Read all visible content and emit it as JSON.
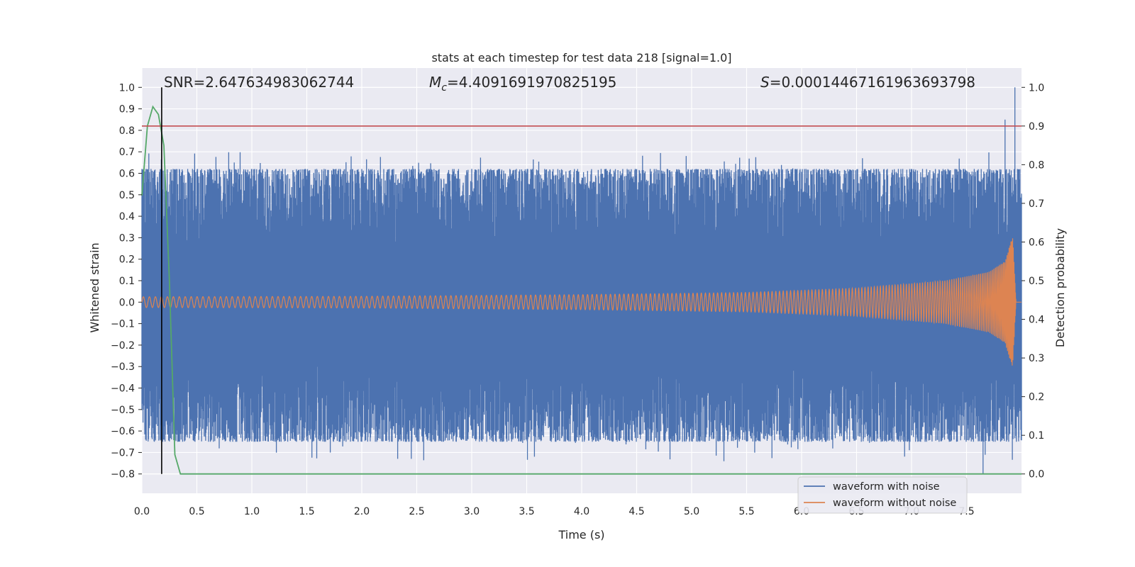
{
  "chart_data": {
    "type": "line",
    "title": "stats at each timestep for test data 218 [signal=1.0]",
    "xlabel": "Time (s)",
    "ylabel": "Whitened strain",
    "y2label": "Detection probability",
    "xlim": [
      0.0,
      8.0
    ],
    "ylim": [
      -0.89,
      1.09
    ],
    "y2lim": [
      -0.05,
      1.05
    ],
    "xticks": [
      0.0,
      0.5,
      1.0,
      1.5,
      2.0,
      2.5,
      3.0,
      3.5,
      4.0,
      4.5,
      5.0,
      5.5,
      6.0,
      6.5,
      7.0,
      7.5
    ],
    "xtick_labels": [
      "0.0",
      "0.5",
      "1.0",
      "1.5",
      "2.0",
      "2.5",
      "3.0",
      "3.5",
      "4.0",
      "4.5",
      "5.0",
      "5.5",
      "6.0",
      "6.5",
      "7.0",
      "7.5"
    ],
    "yticks": [
      1.0,
      0.9,
      0.8,
      0.7,
      0.6,
      0.5,
      0.4,
      0.3,
      0.2,
      0.1,
      0.0,
      -0.1,
      -0.2,
      -0.3,
      -0.4,
      -0.5,
      -0.6,
      -0.7,
      -0.8
    ],
    "ytick_labels": [
      "1.0",
      "0.9",
      "0.8",
      "0.7",
      "0.6",
      "0.5",
      "0.4",
      "0.3",
      "0.2",
      "0.1",
      "0.0",
      "−0.1",
      "−0.2",
      "−0.3",
      "−0.4",
      "−0.5",
      "−0.6",
      "−0.7",
      "−0.8"
    ],
    "y2ticks": [
      1.0,
      0.9,
      0.8,
      0.7,
      0.6,
      0.5,
      0.4,
      0.3,
      0.2,
      0.1,
      0.0
    ],
    "y2tick_labels": [
      "1.0",
      "0.9",
      "0.8",
      "0.7",
      "0.6",
      "0.5",
      "0.4",
      "0.3",
      "0.2",
      "0.1",
      "0.0"
    ],
    "annotations": {
      "snr": "SNR=2.647634983062744",
      "mc_symbol": "M",
      "mc_sub": "c",
      "mc_value": "=4.4091691970825195",
      "s_symbol": "S",
      "s_value": "=0.00014467161963693798"
    },
    "series": [
      {
        "name": "waveform with noise",
        "color": "#4c72b0",
        "axis": "left",
        "x_range": [
          0.0,
          8.0
        ],
        "envelope_typical": [
          -0.65,
          0.62
        ],
        "extremes": {
          "max": 1.0,
          "min": -0.8
        }
      },
      {
        "name": "waveform without noise",
        "color": "#dd8452",
        "axis": "left",
        "x_range": [
          0.0,
          8.0
        ],
        "amplitude_points": [
          [
            0.0,
            0.025
          ],
          [
            2.0,
            0.027
          ],
          [
            4.0,
            0.035
          ],
          [
            5.5,
            0.045
          ],
          [
            6.5,
            0.065
          ],
          [
            7.3,
            0.1
          ],
          [
            7.7,
            0.14
          ],
          [
            7.85,
            0.19
          ],
          [
            7.92,
            0.31
          ],
          [
            7.95,
            0.0
          ]
        ]
      },
      {
        "color": "#55a868",
        "axis": "right",
        "x": [
          0.0,
          0.05,
          0.1,
          0.15,
          0.2,
          0.25,
          0.3,
          0.35,
          0.4,
          8.0
        ],
        "y": [
          0.72,
          0.9,
          0.95,
          0.93,
          0.85,
          0.5,
          0.05,
          0.0,
          0.0,
          0.0
        ]
      }
    ],
    "threshold_line": {
      "axis": "right",
      "value": 0.9,
      "color": "#c44e52"
    },
    "marker_line": {
      "x": 0.18,
      "color": "#000000",
      "y_range": [
        -0.8,
        1.0
      ]
    },
    "legend_position": "lower-right",
    "grid": true,
    "style": {
      "background": "#eaeaf2",
      "grid_color": "#ffffff"
    }
  }
}
